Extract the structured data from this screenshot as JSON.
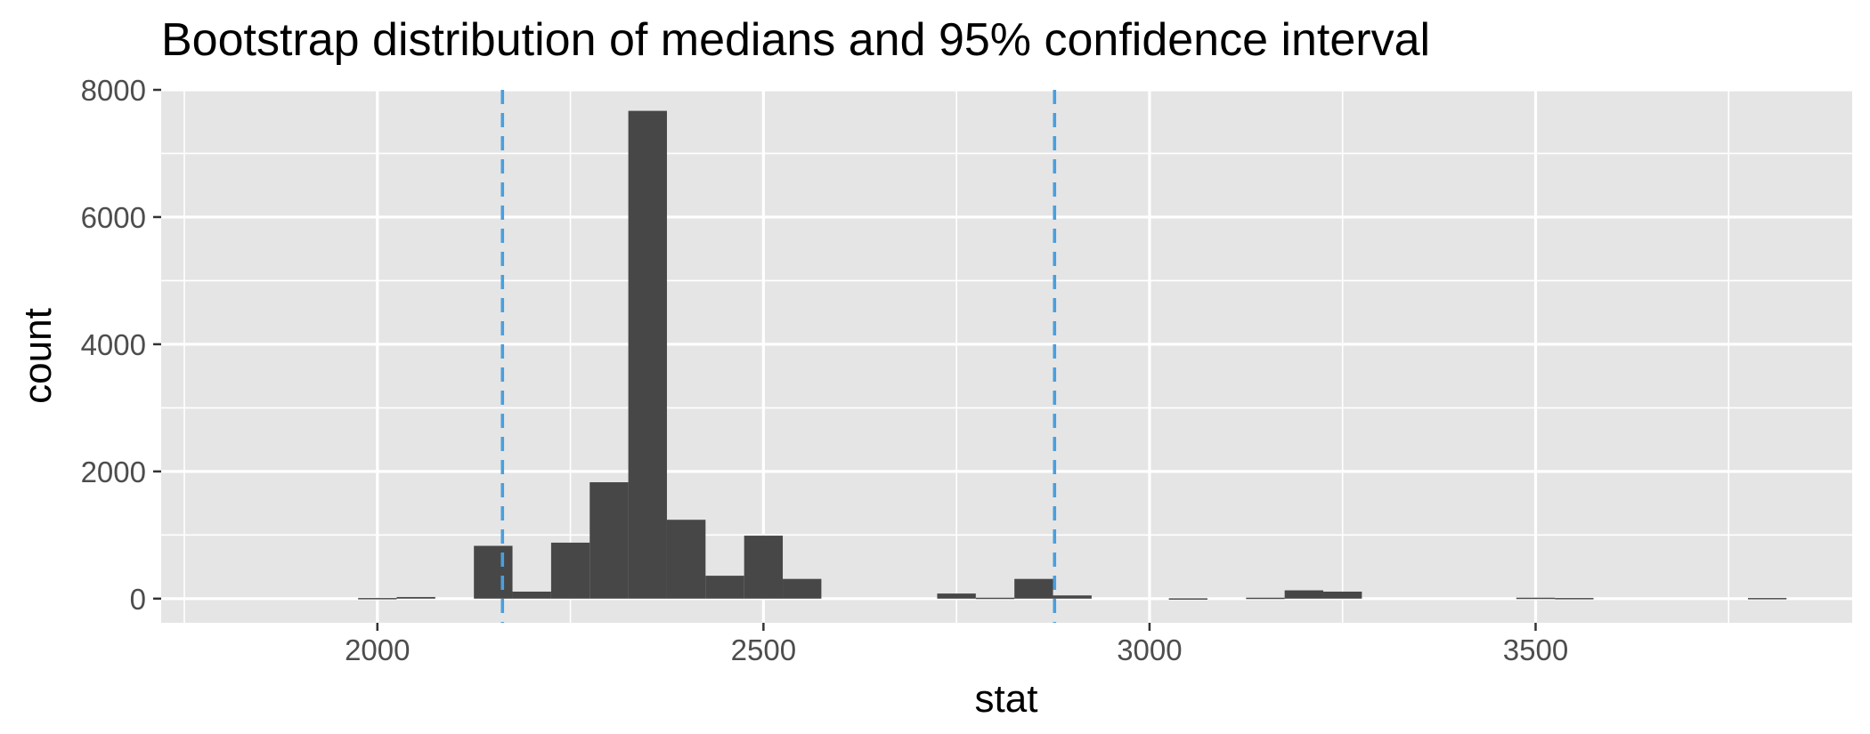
{
  "chart_data": {
    "type": "bar",
    "title": "Bootstrap distribution of medians and 95% confidence interval",
    "xlabel": "stat",
    "ylabel": "count",
    "xlim": [
      1720,
      3910
    ],
    "ylim": [
      -380,
      8000
    ],
    "x_ticks": [
      2000,
      2500,
      3000,
      3500
    ],
    "y_ticks": [
      0,
      2000,
      4000,
      6000,
      8000
    ],
    "x_minor_ticks": [
      1750,
      2250,
      2750,
      3250,
      3750
    ],
    "y_minor_ticks": [
      1000,
      3000,
      5000,
      7000
    ],
    "grid": true,
    "panel_background": "#e5e5e5",
    "bar_color": "#474747",
    "ci_line_color": "#4a9fdd",
    "bin_width": 50,
    "bins": [
      {
        "start": 1975,
        "end": 2025,
        "count": 10
      },
      {
        "start": 2025,
        "end": 2075,
        "count": 25
      },
      {
        "start": 2125,
        "end": 2175,
        "count": 830
      },
      {
        "start": 2175,
        "end": 2225,
        "count": 110
      },
      {
        "start": 2225,
        "end": 2275,
        "count": 880
      },
      {
        "start": 2275,
        "end": 2325,
        "count": 1830
      },
      {
        "start": 2325,
        "end": 2375,
        "count": 7670
      },
      {
        "start": 2375,
        "end": 2425,
        "count": 1240
      },
      {
        "start": 2425,
        "end": 2475,
        "count": 360
      },
      {
        "start": 2475,
        "end": 2525,
        "count": 990
      },
      {
        "start": 2525,
        "end": 2575,
        "count": 310
      },
      {
        "start": 2725,
        "end": 2775,
        "count": 80
      },
      {
        "start": 2775,
        "end": 2825,
        "count": 15
      },
      {
        "start": 2825,
        "end": 2875,
        "count": 310
      },
      {
        "start": 2875,
        "end": 2925,
        "count": 50
      },
      {
        "start": 3025,
        "end": 3075,
        "count": 5
      },
      {
        "start": 3125,
        "end": 3175,
        "count": 15
      },
      {
        "start": 3175,
        "end": 3225,
        "count": 130
      },
      {
        "start": 3225,
        "end": 3275,
        "count": 110
      },
      {
        "start": 3475,
        "end": 3525,
        "count": 15
      },
      {
        "start": 3525,
        "end": 3575,
        "count": 10
      },
      {
        "start": 3775,
        "end": 3825,
        "count": 10
      }
    ],
    "ci_lower": 2162,
    "ci_upper": 2877
  }
}
